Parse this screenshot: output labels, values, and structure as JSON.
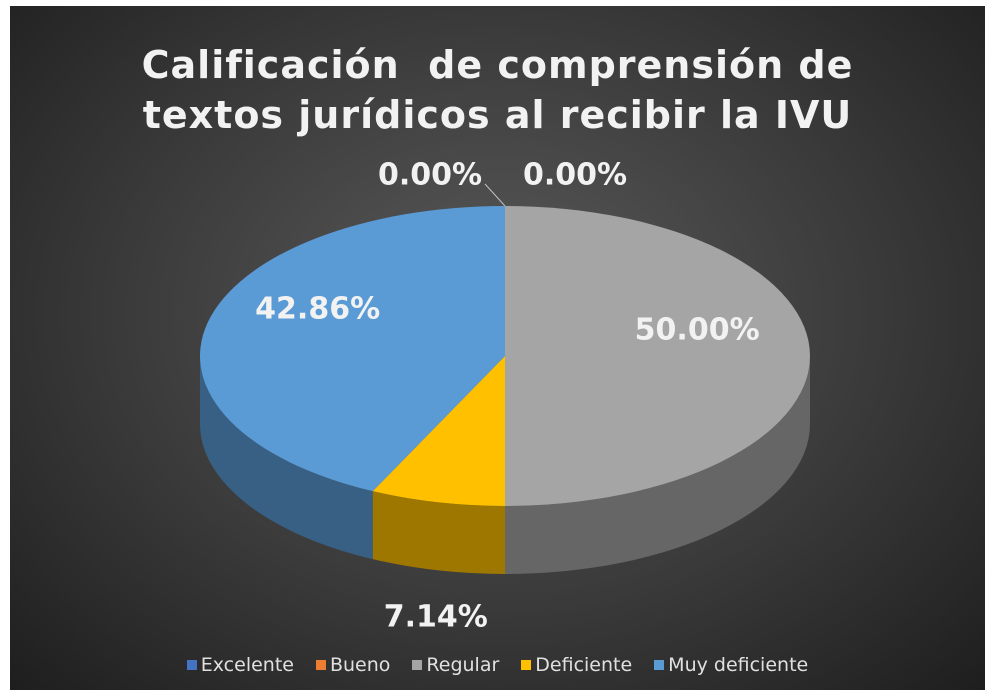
{
  "chart_data": {
    "type": "pie3d",
    "title": "Calificación  de comprensión de textos jurídicos al recibir la IVU",
    "categories": [
      "Excelente",
      "Bueno",
      "Regular",
      "Deficiente",
      "Muy deficiente"
    ],
    "values": [
      0,
      0,
      50,
      7.14,
      42.86
    ],
    "value_labels": [
      "0.00%",
      "0.00%",
      "50.00%",
      "7.14%",
      "42.86%"
    ],
    "colors": [
      "#4472c4",
      "#ed7d31",
      "#a5a5a5",
      "#ffc000",
      "#5b9bd5"
    ],
    "legend": "bottom"
  }
}
